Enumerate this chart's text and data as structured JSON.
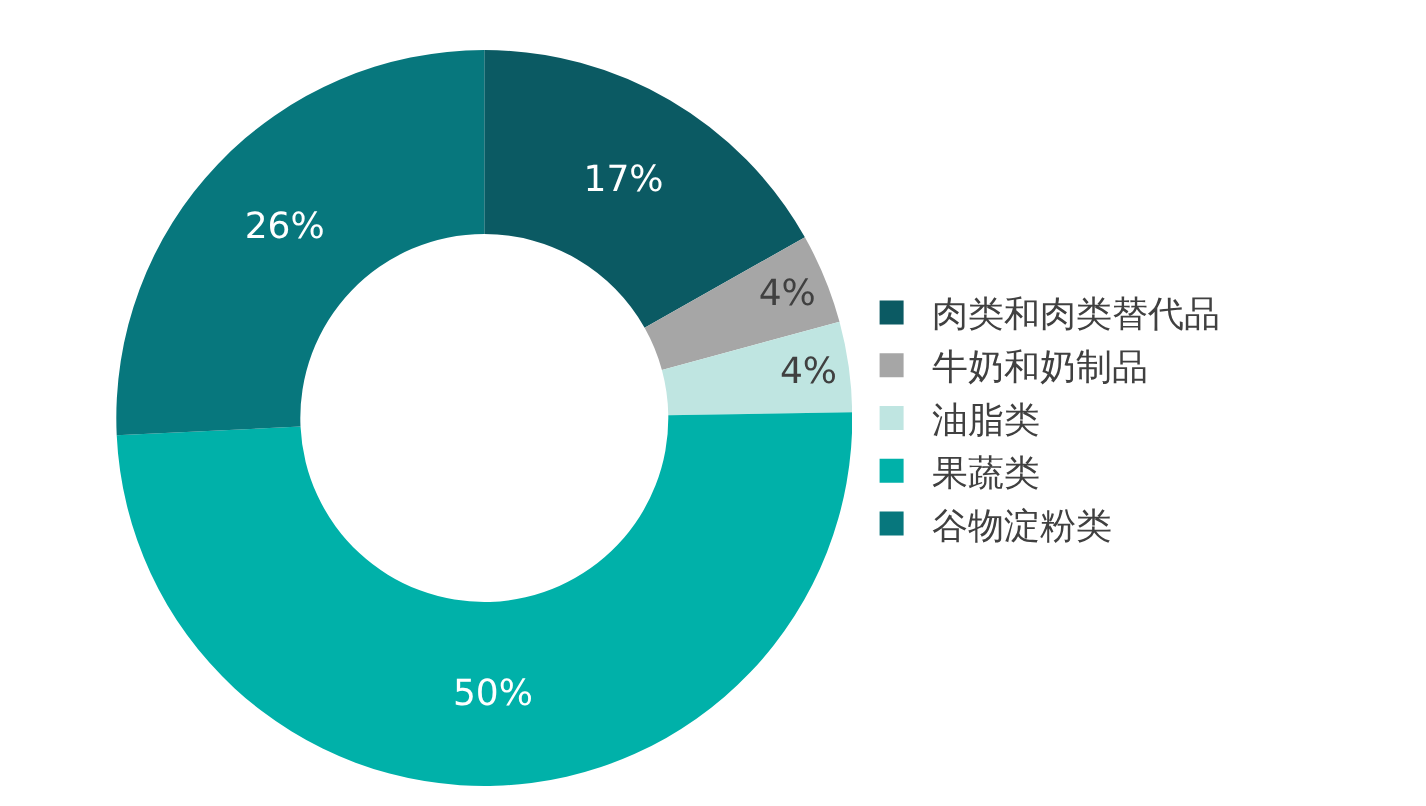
{
  "chart_data": {
    "type": "donut",
    "categories": [
      "肉类和肉类替代品",
      "牛奶和奶制品",
      "油脂类",
      "果蔬类",
      "谷物淀粉类"
    ],
    "values": [
      17,
      4,
      4,
      50,
      26
    ],
    "value_labels": [
      "17%",
      "4%",
      "4%",
      "50%",
      "26%"
    ],
    "colors": [
      "#0b5a63",
      "#a6a6a6",
      "#bfe5e1",
      "#00b1a9",
      "#07777d"
    ],
    "legend": "right"
  }
}
